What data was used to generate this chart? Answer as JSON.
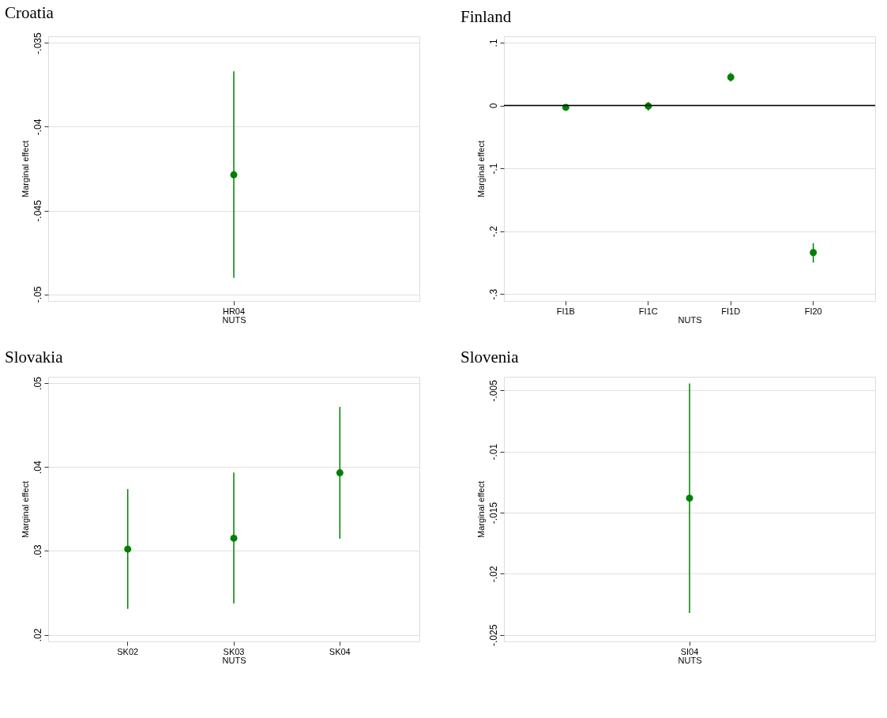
{
  "chart_data": [
    {
      "type": "scatter",
      "title": "Croatia",
      "xlabel": "NUTS",
      "ylabel": "Marginal effect",
      "categories": [
        "HR04"
      ],
      "series": [
        {
          "color": "#008000",
          "values": [
            -0.04287
          ],
          "errors": [
            [
              -0.04902,
              -0.03669
            ]
          ]
        }
      ],
      "ylim": [
        -0.0504,
        -0.0346
      ],
      "yticks": [
        {
          "value": -0.05,
          "label": "-.05"
        },
        {
          "value": -0.045,
          "label": "-.045"
        },
        {
          "value": -0.04,
          "label": "-.04"
        },
        {
          "value": -0.035,
          "label": "-.035"
        }
      ],
      "grid": "y",
      "marker": "circle"
    },
    {
      "type": "scatter",
      "title": "Finland",
      "xlabel": "NUTS",
      "ylabel": "Marginal effect",
      "categories": [
        "FI1B",
        "FI1C",
        "FI1D",
        "FI20"
      ],
      "series": [
        {
          "color": "#008000",
          "values": [
            -0.003,
            -0.001,
            0.045,
            -0.234
          ],
          "errors": [
            [
              -0.008,
              0.001
            ],
            [
              -0.008,
              0.0055
            ],
            [
              0.038,
              0.052
            ],
            [
              -0.25,
              -0.219
            ]
          ]
        }
      ],
      "ylim": [
        -0.311,
        0.11
      ],
      "yticks": [
        {
          "value": -0.3,
          "label": "-.3"
        },
        {
          "value": -0.2,
          "label": "-.2"
        },
        {
          "value": -0.1,
          "label": "-.1"
        },
        0,
        {
          "value": 0.1,
          "label": ".1"
        }
      ],
      "ref_lines": [
        {
          "axis": "y",
          "value": 0,
          "color": "#000000"
        }
      ],
      "grid": "y",
      "marker": "circle"
    },
    {
      "type": "scatter",
      "title": "Slovakia",
      "xlabel": "NUTS",
      "ylabel": "Marginal effect",
      "categories": [
        "SK02",
        "SK03",
        "SK04"
      ],
      "series": [
        {
          "color": "#008000",
          "values": [
            0.0302,
            0.0315,
            0.0393
          ],
          "errors": [
            [
              0.02308,
              0.03736
            ],
            [
              0.02373,
              0.03934
            ],
            [
              0.03144,
              0.04716
            ]
          ]
        }
      ],
      "ylim": [
        0.0192,
        0.05075
      ],
      "yticks": [
        {
          "value": 0.02,
          "label": ".02"
        },
        {
          "value": 0.03,
          "label": ".03"
        },
        {
          "value": 0.04,
          "label": ".04"
        },
        {
          "value": 0.05,
          "label": ".05"
        }
      ],
      "grid": "y",
      "marker": "circle"
    },
    {
      "type": "scatter",
      "title": "Slovenia",
      "xlabel": "NUTS",
      "ylabel": "Marginal effect",
      "categories": [
        "SI04"
      ],
      "series": [
        {
          "color": "#008000",
          "values": [
            -0.01381
          ],
          "errors": [
            [
              -0.0232,
              -0.00443
            ]
          ]
        }
      ],
      "ylim": [
        -0.02553,
        -0.00388
      ],
      "yticks": [
        {
          "value": -0.025,
          "label": "-.025"
        },
        {
          "value": -0.02,
          "label": "-.02"
        },
        {
          "value": -0.015,
          "label": "-.015"
        },
        {
          "value": -0.01,
          "label": "-.01"
        },
        {
          "value": -0.005,
          "label": "-.005"
        }
      ],
      "grid": "y",
      "marker": "circle"
    }
  ]
}
